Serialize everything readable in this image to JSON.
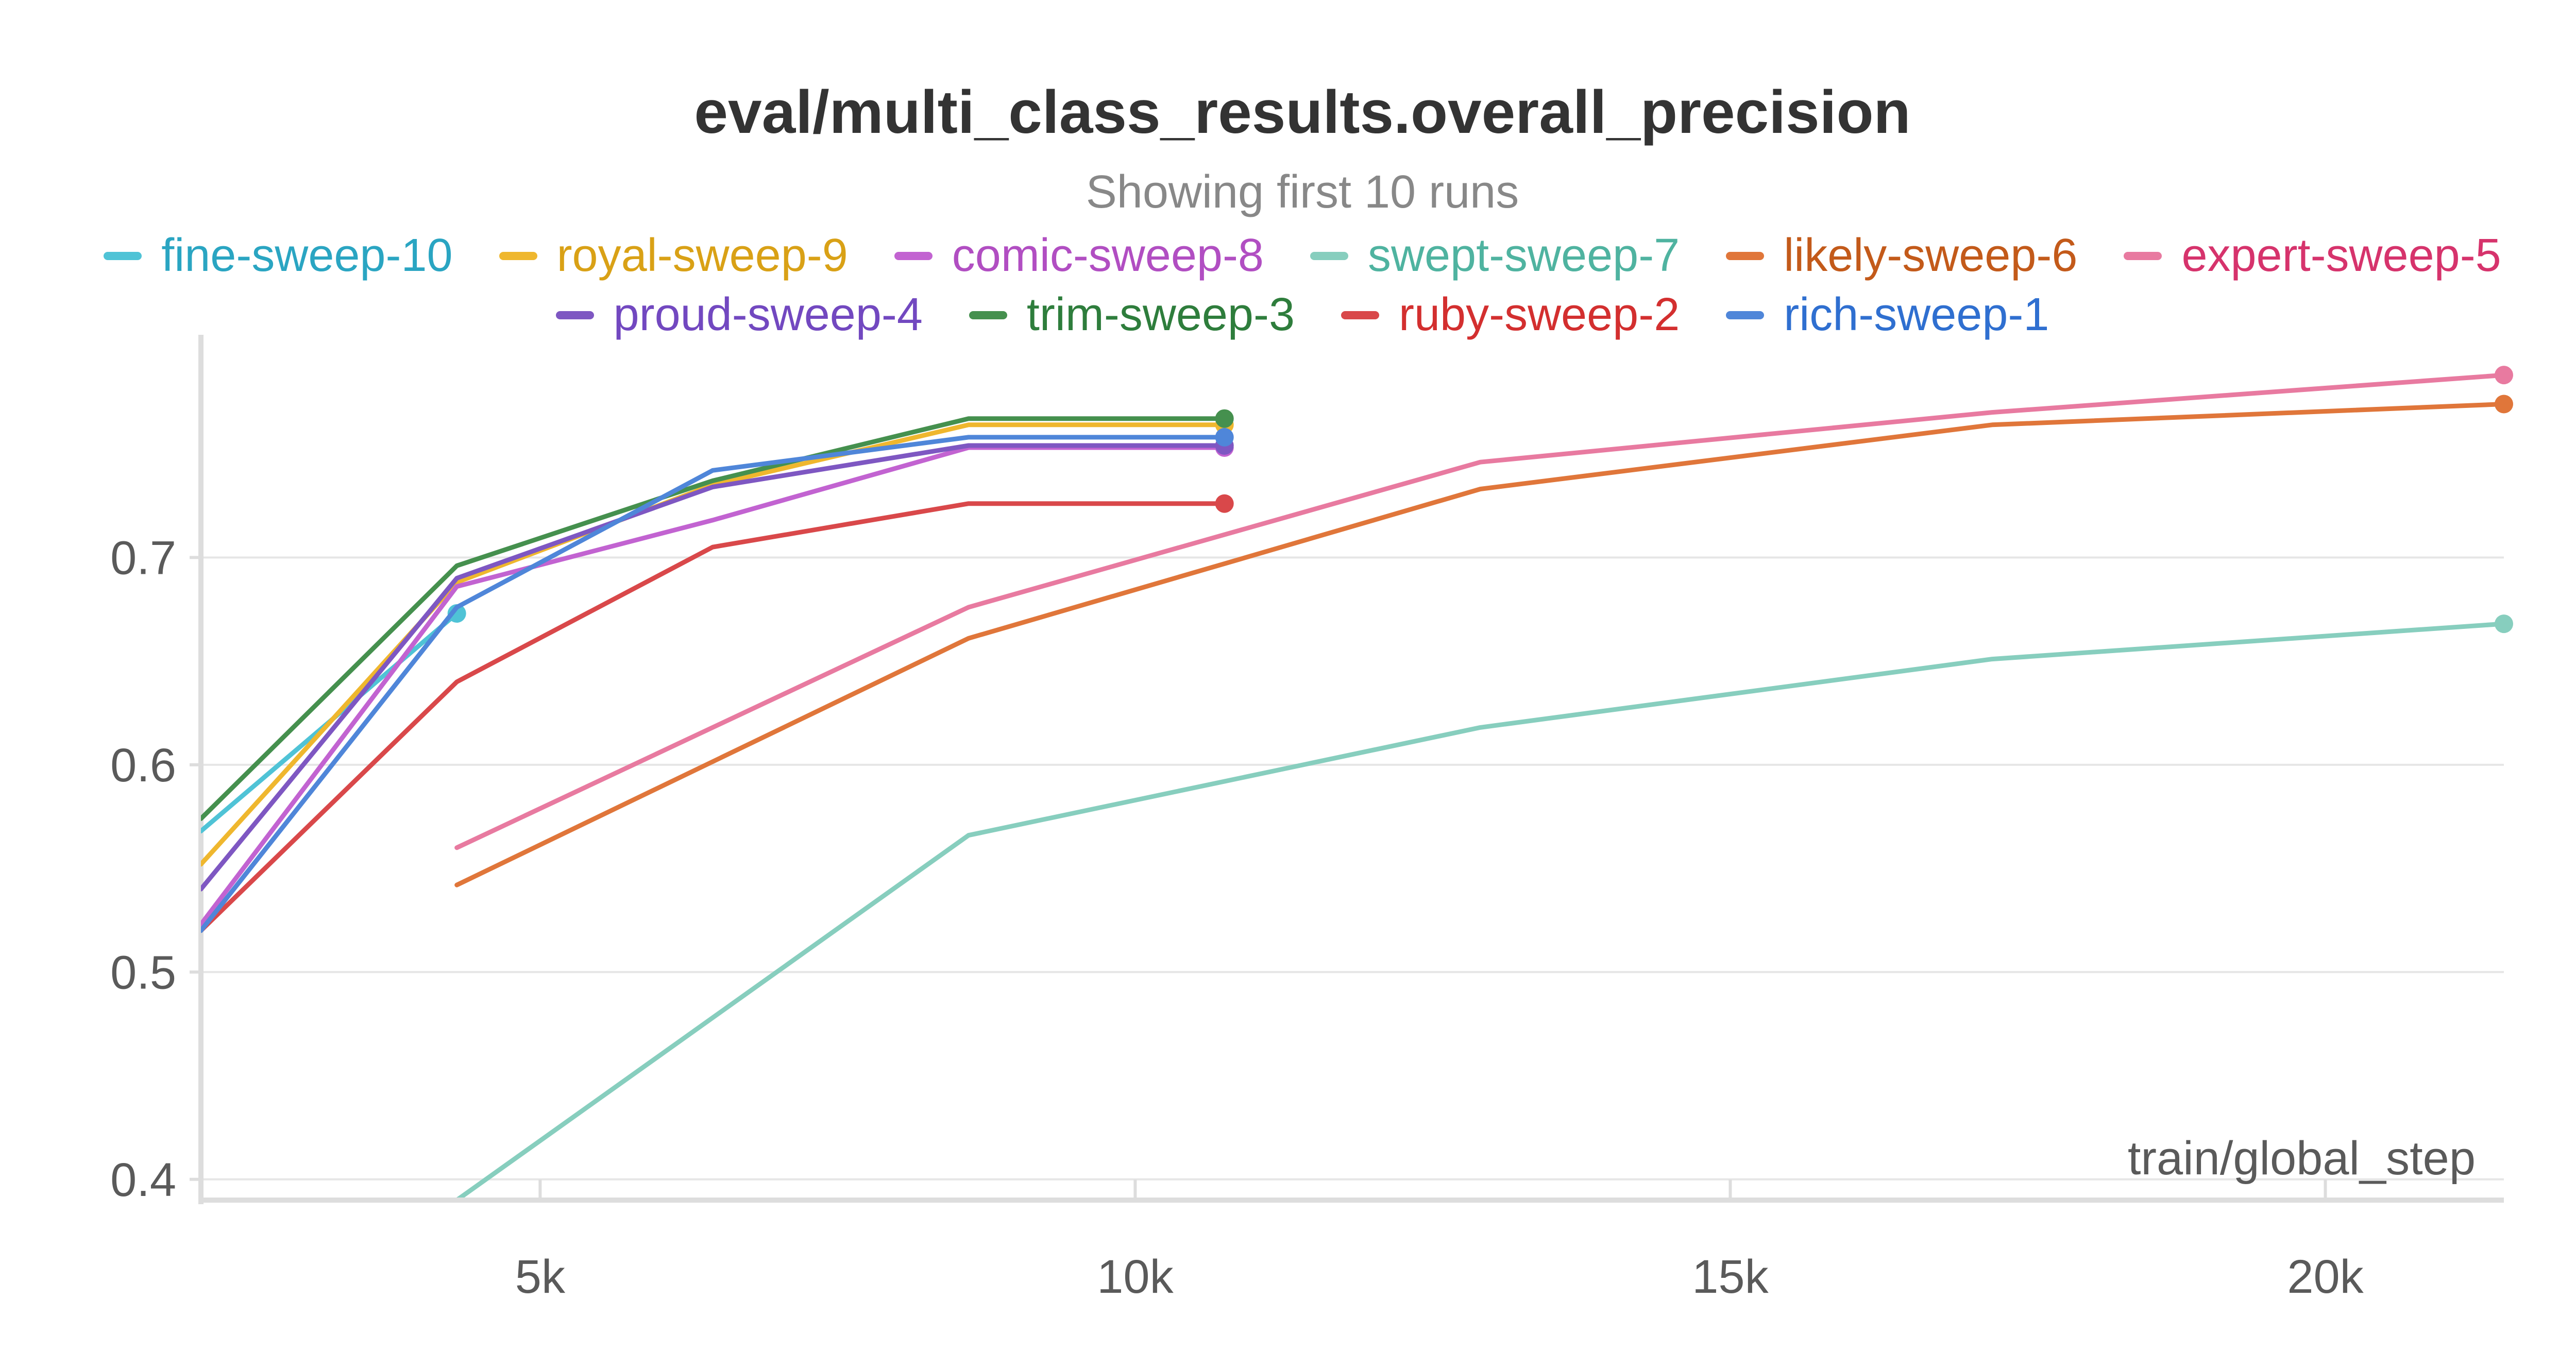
{
  "chart_data": {
    "type": "line",
    "title": "eval/multi_class_results.overall_precision",
    "subtitle": "Showing first 10 runs",
    "xlabel": "train/global_step",
    "ylabel": "",
    "xlim": [
      2150,
      21500
    ],
    "ylim": [
      0.39,
      0.795
    ],
    "xticks": [
      5000,
      10000,
      15000,
      20000
    ],
    "xtick_labels": [
      "5k",
      "10k",
      "15k",
      "20k"
    ],
    "yticks": [
      0.4,
      0.5,
      0.6,
      0.7
    ],
    "ytick_labels": [
      "0.4",
      "0.5",
      "0.6",
      "0.7"
    ],
    "grid": true,
    "legend_position": "top",
    "series": [
      {
        "name": "fine-sweep-10",
        "color": "#4fc3d6",
        "text_color": "#2aa5c2",
        "x": [
          2150,
          4300
        ],
        "y": [
          0.568,
          0.673
        ]
      },
      {
        "name": "royal-sweep-9",
        "color": "#efb72e",
        "text_color": "#d9a116",
        "x": [
          2150,
          4300,
          6450,
          8600,
          10750
        ],
        "y": [
          0.552,
          0.688,
          0.735,
          0.764,
          0.764
        ]
      },
      {
        "name": "comic-sweep-8",
        "color": "#c263d1",
        "text_color": "#b14ec2",
        "x": [
          2150,
          4300,
          6450,
          8600,
          10750
        ],
        "y": [
          0.523,
          0.686,
          0.718,
          0.753,
          0.753
        ]
      },
      {
        "name": "swept-sweep-7",
        "color": "#87cebe",
        "text_color": "#4fb3a0",
        "x": [
          4300,
          8600,
          12900,
          17200,
          21500
        ],
        "y": [
          0.39,
          0.566,
          0.618,
          0.651,
          0.668
        ]
      },
      {
        "name": "likely-sweep-6",
        "color": "#e0763a",
        "text_color": "#c35a1a",
        "x": [
          4300,
          8600,
          12900,
          17200,
          21500
        ],
        "y": [
          0.542,
          0.661,
          0.733,
          0.764,
          0.774
        ]
      },
      {
        "name": "expert-sweep-5",
        "color": "#e87aa0",
        "text_color": "#d6336c",
        "x": [
          4300,
          8600,
          12900,
          17200,
          21500
        ],
        "y": [
          0.56,
          0.676,
          0.746,
          0.77,
          0.788
        ]
      },
      {
        "name": "proud-sweep-4",
        "color": "#7e57c2",
        "text_color": "#7248c0",
        "x": [
          2150,
          4300,
          6450,
          8600,
          10750
        ],
        "y": [
          0.54,
          0.69,
          0.734,
          0.754,
          0.754
        ]
      },
      {
        "name": "trim-sweep-3",
        "color": "#45904e",
        "text_color": "#2e7d3c",
        "x": [
          2150,
          4300,
          6450,
          8600,
          10750
        ],
        "y": [
          0.574,
          0.696,
          0.737,
          0.767,
          0.767
        ]
      },
      {
        "name": "ruby-sweep-2",
        "color": "#d9484a",
        "text_color": "#d32f2f",
        "x": [
          2150,
          4300,
          6450,
          8600,
          10750
        ],
        "y": [
          0.52,
          0.64,
          0.705,
          0.726,
          0.726
        ]
      },
      {
        "name": "rich-sweep-1",
        "color": "#4f86d9",
        "text_color": "#2f6fd0",
        "x": [
          2150,
          4300,
          6450,
          8600,
          10750
        ],
        "y": [
          0.52,
          0.676,
          0.742,
          0.758,
          0.758
        ]
      }
    ]
  }
}
